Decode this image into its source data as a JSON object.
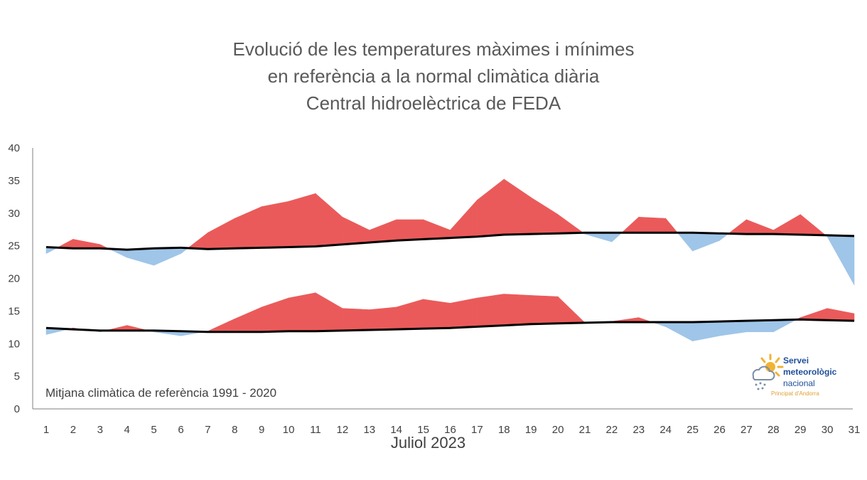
{
  "title_lines": [
    "Evolució de les temperatures màximes i mínimes",
    "en referència a la normal climàtica diària",
    "Central hidroelèctrica de FEDA"
  ],
  "note": "Mitjana climàtica de referència 1991 - 2020",
  "logo": {
    "line1": "Servei",
    "line2": "meteorològic",
    "line3": "nacional",
    "sub": "Principat d'Andorra",
    "icon": "sun-cloud-rain-icon"
  },
  "colors": {
    "above": "#eb5a5a",
    "below": "#9fc5e8",
    "normal": "#000000"
  },
  "chart_data": {
    "type": "area",
    "xlabel": "Juliol 2023",
    "ylabel": "",
    "ylim": [
      0,
      40
    ],
    "yticks": [
      0,
      5,
      10,
      15,
      20,
      25,
      30,
      35,
      40
    ],
    "grid": false,
    "x": [
      1,
      2,
      3,
      4,
      5,
      6,
      7,
      8,
      9,
      10,
      11,
      12,
      13,
      14,
      15,
      16,
      17,
      18,
      19,
      20,
      21,
      22,
      23,
      24,
      25,
      26,
      27,
      28,
      29,
      30,
      31
    ],
    "series": [
      {
        "key": "tmax",
        "values": [
          23.8,
          26.0,
          25.2,
          23.2,
          22.0,
          23.8,
          27.0,
          29.2,
          31.0,
          31.8,
          33.0,
          29.4,
          27.4,
          29.0,
          29.0,
          27.4,
          32.0,
          35.2,
          32.4,
          29.8,
          26.8,
          25.6,
          29.4,
          29.2,
          24.2,
          25.8,
          29.0,
          27.4,
          29.8,
          26.4,
          19.0
        ]
      },
      {
        "key": "tmax_normal",
        "values": [
          24.8,
          24.6,
          24.6,
          24.4,
          24.6,
          24.7,
          24.5,
          24.6,
          24.7,
          24.8,
          24.9,
          25.2,
          25.5,
          25.8,
          26.0,
          26.2,
          26.4,
          26.7,
          26.8,
          26.9,
          27.0,
          27.0,
          27.0,
          27.0,
          27.0,
          26.9,
          26.8,
          26.8,
          26.7,
          26.6,
          26.5
        ]
      },
      {
        "key": "tmin",
        "values": [
          11.4,
          12.4,
          11.8,
          12.8,
          11.8,
          11.2,
          11.9,
          13.8,
          15.6,
          17.0,
          17.8,
          15.4,
          15.2,
          15.6,
          16.8,
          16.2,
          17.0,
          17.6,
          17.4,
          17.2,
          13.2,
          13.4,
          14.0,
          12.6,
          10.4,
          11.2,
          11.8,
          11.8,
          14.0,
          15.4,
          14.6
        ]
      },
      {
        "key": "tmin_normal",
        "values": [
          12.4,
          12.2,
          12.0,
          12.0,
          12.0,
          11.9,
          11.8,
          11.8,
          11.8,
          11.9,
          11.9,
          12.0,
          12.1,
          12.2,
          12.3,
          12.4,
          12.6,
          12.8,
          13.0,
          13.1,
          13.2,
          13.3,
          13.3,
          13.3,
          13.3,
          13.4,
          13.5,
          13.6,
          13.7,
          13.6,
          13.5
        ]
      }
    ]
  }
}
